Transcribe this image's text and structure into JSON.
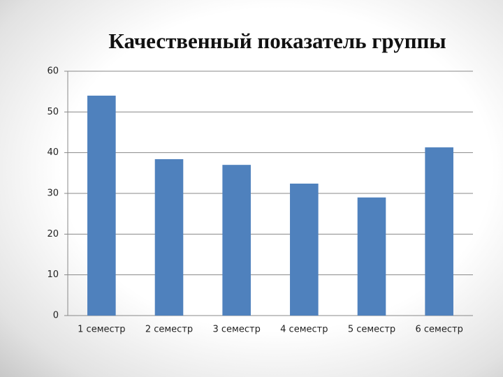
{
  "chart_data": {
    "type": "bar",
    "title": "Качественный показатель группы",
    "categories": [
      "1 семестр",
      "2 семестр",
      "3 семестр",
      "4 семестр",
      "5 семестр",
      "6 семестр"
    ],
    "values": [
      54,
      38.4,
      37,
      32.4,
      29,
      41.3
    ],
    "color": "#4f81bd",
    "ylim": [
      0,
      60
    ],
    "yticks": [
      0,
      10,
      20,
      30,
      40,
      50,
      60
    ],
    "grid": true
  }
}
